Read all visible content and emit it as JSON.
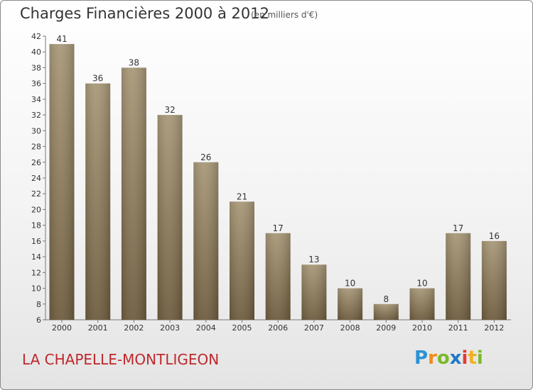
{
  "title": "Charges Financières 2000 à 2012",
  "subtitle": "(en milliers d'€)",
  "place": "LA CHAPELLE-MONTLIGEON",
  "logo_text": "Proxiti",
  "colors": {
    "bar_top": "#a89878",
    "bar_bottom": "#6e5c3e",
    "title": "#333333",
    "place": "#c0272d"
  },
  "chart_data": {
    "type": "bar",
    "categories": [
      "2000",
      "2001",
      "2002",
      "2003",
      "2004",
      "2005",
      "2006",
      "2007",
      "2008",
      "2009",
      "2010",
      "2011",
      "2012"
    ],
    "values": [
      41,
      36,
      38,
      32,
      26,
      21,
      17,
      13,
      10,
      8,
      10,
      17,
      16
    ],
    "ylim": [
      6,
      42
    ],
    "yticks": [
      6,
      8,
      10,
      12,
      14,
      16,
      18,
      20,
      22,
      24,
      26,
      28,
      30,
      32,
      34,
      36,
      38,
      40,
      42
    ],
    "grid": false,
    "data_labels": true
  }
}
